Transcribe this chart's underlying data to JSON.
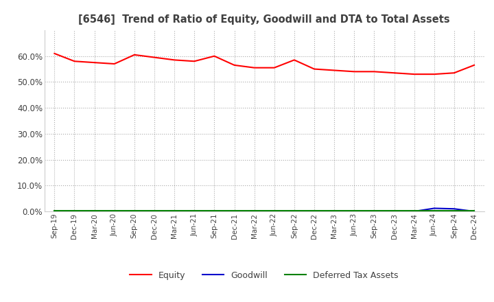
{
  "title": "[6546]  Trend of Ratio of Equity, Goodwill and DTA to Total Assets",
  "x_labels": [
    "Sep-19",
    "Dec-19",
    "Mar-20",
    "Jun-20",
    "Sep-20",
    "Dec-20",
    "Mar-21",
    "Jun-21",
    "Sep-21",
    "Dec-21",
    "Mar-22",
    "Jun-22",
    "Sep-22",
    "Dec-22",
    "Mar-23",
    "Jun-23",
    "Sep-23",
    "Dec-23",
    "Mar-24",
    "Jun-24",
    "Sep-24",
    "Dec-24"
  ],
  "equity": [
    61.0,
    58.0,
    57.5,
    57.0,
    60.5,
    59.5,
    58.5,
    58.0,
    60.0,
    56.5,
    55.5,
    55.5,
    58.5,
    55.0,
    54.5,
    54.0,
    54.0,
    53.5,
    53.0,
    53.0,
    53.5,
    56.5
  ],
  "goodwill": [
    0.0,
    0.0,
    0.0,
    0.0,
    0.0,
    0.0,
    0.0,
    0.0,
    0.0,
    0.0,
    0.0,
    0.0,
    0.0,
    0.0,
    0.0,
    0.0,
    0.0,
    0.0,
    0.0,
    1.2,
    1.0,
    0.0
  ],
  "dta": [
    0.2,
    0.2,
    0.2,
    0.2,
    0.2,
    0.2,
    0.2,
    0.2,
    0.2,
    0.2,
    0.2,
    0.2,
    0.2,
    0.2,
    0.2,
    0.2,
    0.2,
    0.2,
    0.2,
    0.2,
    0.2,
    0.2
  ],
  "equity_color": "#ff0000",
  "goodwill_color": "#0000cc",
  "dta_color": "#008000",
  "ylim": [
    0,
    70
  ],
  "yticks": [
    0,
    10,
    20,
    30,
    40,
    50,
    60
  ],
  "ytick_labels": [
    "0.0%",
    "10.0%",
    "20.0%",
    "30.0%",
    "40.0%",
    "50.0%",
    "60.0%"
  ],
  "bg_color": "#ffffff",
  "grid_color": "#aaaaaa",
  "title_color": "#404040",
  "legend_labels": [
    "Equity",
    "Goodwill",
    "Deferred Tax Assets"
  ]
}
